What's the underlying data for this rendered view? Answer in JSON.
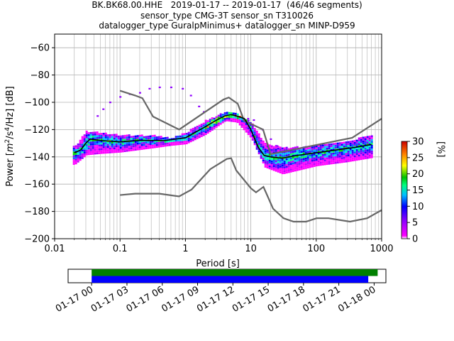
{
  "header": {
    "line1": "BK.BK68.00.HHE   2019-01-17 -- 2019-01-17  (46/46 segments)",
    "line2": "sensor_type CMG-3T sensor_sn T310026",
    "line3": "datalogger_type GuralpMinimus+ datalogger_sn MINP-D959"
  },
  "chart_data": [
    {
      "type": "heatmap",
      "title": "BK.BK68.00.HHE   2019-01-17 -- 2019-01-17  (46/46 segments)",
      "xlabel": "Period [s]",
      "ylabel_main": "Power [",
      "ylabel_unit_mid": "m",
      "ylabel_sup1": "2",
      "ylabel_slash": "/s",
      "ylabel_sup2": "4",
      "ylabel_tail": "/Hz] [dB]",
      "x_scale": "log",
      "xlim": [
        0.01,
        1000
      ],
      "ylim": [
        -200,
        -50
      ],
      "x_ticks": [
        0.01,
        0.1,
        1,
        10,
        100,
        1000
      ],
      "x_tick_labels": [
        "0.01",
        "0.1",
        "1",
        "10",
        "100",
        "1000"
      ],
      "y_ticks": [
        -200,
        -180,
        -160,
        -140,
        -120,
        -100,
        -80,
        -60
      ],
      "y_tick_labels": [
        "−200",
        "−180",
        "−160",
        "−140",
        "−120",
        "−100",
        "−80",
        "−60"
      ],
      "grid": true,
      "colorbar": {
        "label": "[%]",
        "range": [
          0,
          30
        ],
        "ticks": [
          0,
          5,
          10,
          15,
          20,
          25,
          30
        ],
        "tick_labels": [
          "0",
          "5",
          "10",
          "15",
          "20",
          "25",
          "30"
        ]
      },
      "noise_models": [
        {
          "name": "high",
          "x": [
            0.1,
            0.17,
            0.22,
            0.32,
            0.8,
            3.8,
            4.6,
            6.3,
            7.9,
            15.4,
            20,
            354.8,
            1000
          ],
          "y": [
            -91.5,
            -95,
            -97,
            -110.5,
            -120,
            -98,
            -96.5,
            -101,
            -113.5,
            -120,
            -138,
            -126,
            -112
          ]
        },
        {
          "name": "low",
          "x": [
            0.1,
            0.17,
            0.4,
            0.8,
            1.24,
            2.4,
            4.3,
            5.0,
            6.0,
            10,
            12,
            15.6,
            21.9,
            31.6,
            45,
            70,
            101,
            154,
            328,
            600,
            1000
          ],
          "y": [
            -168,
            -167,
            -167,
            -169,
            -164,
            -149,
            -141.5,
            -141,
            -150,
            -163,
            -166,
            -162,
            -178,
            -185,
            -187.5,
            -187.5,
            -185,
            -185,
            -187.5,
            -185,
            -179
          ]
        }
      ],
      "mean_curve": {
        "x": [
          0.02,
          0.025,
          0.03,
          0.035,
          0.05,
          0.1,
          0.2,
          0.5,
          1,
          2,
          3,
          4,
          5,
          6,
          8,
          10,
          13,
          16,
          20,
          30,
          50,
          100,
          200,
          400,
          700
        ],
        "y": [
          -137,
          -135,
          -130,
          -127,
          -128,
          -129,
          -128,
          -128,
          -126,
          -118,
          -113,
          -110,
          -109,
          -110,
          -112,
          -120,
          -133,
          -139,
          -140,
          -141,
          -139,
          -137,
          -135,
          -133,
          -131
        ]
      },
      "psd_bands": [
        {
          "x": [
            0.02,
            0.03,
            0.05,
            0.1,
            0.3,
            0.6,
            1,
            2,
            4,
            6,
            10,
            16,
            30,
            100,
            300,
            700
          ],
          "y_top": [
            -132,
            -121,
            -122,
            -124,
            -124,
            -126,
            -122,
            -113,
            -107,
            -108,
            -115,
            -130,
            -133,
            -132,
            -128,
            -124
          ],
          "y_bottom": [
            -145,
            -138,
            -137,
            -136,
            -133,
            -131,
            -130,
            -123,
            -113,
            -114,
            -126,
            -147,
            -152,
            -146,
            -143,
            -140
          ]
        }
      ],
      "scatter_points": [
        {
          "x": 0.045,
          "y": -110
        },
        {
          "x": 0.055,
          "y": -105
        },
        {
          "x": 0.07,
          "y": -100
        },
        {
          "x": 0.1,
          "y": -96
        },
        {
          "x": 0.14,
          "y": -94
        },
        {
          "x": 0.2,
          "y": -93
        },
        {
          "x": 0.28,
          "y": -90
        },
        {
          "x": 0.4,
          "y": -89
        },
        {
          "x": 0.6,
          "y": -89
        },
        {
          "x": 0.9,
          "y": -90
        },
        {
          "x": 1.2,
          "y": -95
        },
        {
          "x": 1.6,
          "y": -103
        },
        {
          "x": 1.9,
          "y": -107
        },
        {
          "x": 15,
          "y": -120
        },
        {
          "x": 20,
          "y": -127
        },
        {
          "x": 25,
          "y": -132
        },
        {
          "x": 9,
          "y": -112
        },
        {
          "x": 11,
          "y": -113
        }
      ]
    },
    {
      "type": "timeline",
      "x_ticks": [
        "01-17 00",
        "01-17 03",
        "01-17 06",
        "01-17 09",
        "01-17 12",
        "01-17 15",
        "01-17 18",
        "01-17 21",
        "01-18 00"
      ],
      "range_hours": [
        -2,
        25
      ],
      "bars": [
        {
          "color": "#008000",
          "start_hour": 0,
          "end_hour": 24.3
        },
        {
          "color": "#0000ff",
          "start_hour": 0,
          "end_hour": 23.5
        }
      ]
    }
  ]
}
